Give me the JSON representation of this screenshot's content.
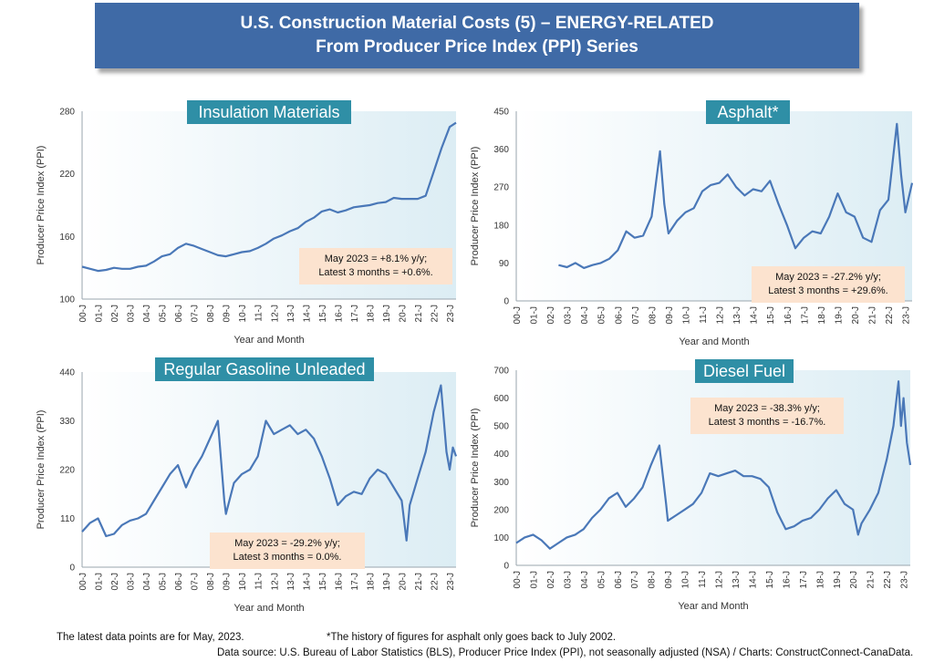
{
  "header": {
    "line1": "U.S. Construction Material Costs (5) – ENERGY-RELATED",
    "line2": "From Producer Price Index (PPI) Series"
  },
  "footer": {
    "latest": "The latest data points are for May, 2023.",
    "asphalt_note": "*The history of figures for asphalt only goes back to July 2002.",
    "source": "Data source: U.S. Bureau of Labor Statistics (BLS), Producer Price Index (PPI), not seasonally adjusted (NSA) / Charts: ConstructConnect-CanaData."
  },
  "colors": {
    "line": "#4a78b8",
    "title_box": "#2f8fa6",
    "annotation_box": "#fce3cf",
    "banner": "#3f6aa6"
  },
  "chart_data": [
    {
      "id": "insulation",
      "type": "line",
      "title": "Insulation Materials",
      "xlabel": "Year and Month",
      "ylabel": "Producer Price Index (PPI)",
      "ylim": [
        100,
        280
      ],
      "yticks": [
        100,
        160,
        220,
        280
      ],
      "xlim": [
        2000.0,
        2023.4
      ],
      "xticks": [
        "00-J",
        "01-J",
        "02-J",
        "03-J",
        "04-J",
        "05-J",
        "06-J",
        "07-J",
        "08-J",
        "09-J",
        "10-J",
        "11-J",
        "12-J",
        "13-J",
        "14-J",
        "15-J",
        "16-J",
        "17-J",
        "18-J",
        "19-J",
        "20-J",
        "21-J",
        "22-J",
        "23-J"
      ],
      "annotation": [
        "May 2023 = +8.1% y/y;",
        "Latest 3 months = +0.6%."
      ],
      "x": [
        2000.0,
        2000.5,
        2001.0,
        2001.5,
        2002.0,
        2002.5,
        2003.0,
        2003.5,
        2004.0,
        2004.5,
        2005.0,
        2005.5,
        2006.0,
        2006.5,
        2007.0,
        2007.5,
        2008.0,
        2008.5,
        2009.0,
        2009.5,
        2010.0,
        2010.5,
        2011.0,
        2011.5,
        2012.0,
        2012.5,
        2013.0,
        2013.5,
        2014.0,
        2014.5,
        2015.0,
        2015.5,
        2016.0,
        2016.5,
        2017.0,
        2017.5,
        2018.0,
        2018.5,
        2019.0,
        2019.5,
        2020.0,
        2020.5,
        2021.0,
        2021.5,
        2022.0,
        2022.5,
        2023.0,
        2023.4
      ],
      "values": [
        131,
        129,
        127,
        128,
        130,
        129,
        129,
        131,
        132,
        136,
        141,
        143,
        149,
        153,
        151,
        148,
        145,
        142,
        141,
        143,
        145,
        146,
        149,
        153,
        158,
        161,
        165,
        168,
        174,
        178,
        184,
        186,
        183,
        185,
        188,
        189,
        190,
        192,
        193,
        197,
        196,
        196,
        196,
        199,
        222,
        245,
        265,
        269
      ]
    },
    {
      "id": "asphalt",
      "type": "line",
      "title": "Asphalt*",
      "xlabel": "Year and Month",
      "ylabel": "Producer Price Index (PPI)",
      "ylim": [
        0,
        450
      ],
      "yticks": [
        0,
        90,
        180,
        270,
        360,
        450
      ],
      "xlim": [
        2000.0,
        2023.4
      ],
      "xticks": [
        "00-J",
        "01-J",
        "02-J",
        "03-J",
        "04-J",
        "05-J",
        "06-J",
        "07-J",
        "08-J",
        "09-J",
        "10-J",
        "11-J",
        "12-J",
        "13-J",
        "14-J",
        "15-J",
        "16-J",
        "17-J",
        "18-J",
        "19-J",
        "20-J",
        "21-J",
        "22-J",
        "23-J"
      ],
      "annotation": [
        "May 2023 = -27.2% y/y;",
        "Latest 3 months = +29.6%."
      ],
      "x": [
        2002.5,
        2003.0,
        2003.5,
        2004.0,
        2004.5,
        2005.0,
        2005.5,
        2006.0,
        2006.5,
        2007.0,
        2007.5,
        2008.0,
        2008.5,
        2008.75,
        2009.0,
        2009.5,
        2010.0,
        2010.5,
        2011.0,
        2011.5,
        2012.0,
        2012.5,
        2013.0,
        2013.5,
        2014.0,
        2014.5,
        2015.0,
        2015.5,
        2016.0,
        2016.5,
        2017.0,
        2017.5,
        2018.0,
        2018.5,
        2019.0,
        2019.5,
        2020.0,
        2020.5,
        2021.0,
        2021.5,
        2022.0,
        2022.5,
        2022.75,
        2023.0,
        2023.4
      ],
      "values": [
        85,
        80,
        90,
        78,
        85,
        90,
        100,
        120,
        165,
        150,
        155,
        200,
        355,
        230,
        160,
        190,
        210,
        220,
        260,
        275,
        280,
        300,
        270,
        250,
        265,
        260,
        285,
        230,
        180,
        125,
        150,
        165,
        160,
        200,
        255,
        210,
        200,
        150,
        140,
        215,
        240,
        420,
        300,
        210,
        280
      ]
    },
    {
      "id": "gasoline",
      "type": "line",
      "title": "Regular Gasoline Unleaded",
      "xlabel": "Year and Month",
      "ylabel": "Producer Price Index (PPI)",
      "ylim": [
        0,
        440
      ],
      "yticks": [
        0,
        110,
        220,
        330,
        440
      ],
      "xlim": [
        2000.0,
        2023.4
      ],
      "xticks": [
        "00-J",
        "01-J",
        "02-J",
        "03-J",
        "04-J",
        "05-J",
        "06-J",
        "07-J",
        "08-J",
        "09-J",
        "10-J",
        "11-J",
        "12-J",
        "13-J",
        "14-J",
        "15-J",
        "16-J",
        "17-J",
        "18-J",
        "19-J",
        "20-J",
        "21-J",
        "22-J",
        "23-J"
      ],
      "annotation": [
        "May 2023 = -29.2% y/y;",
        "Latest 3 months = 0.0%."
      ],
      "x": [
        2000.0,
        2000.5,
        2001.0,
        2001.5,
        2002.0,
        2002.5,
        2003.0,
        2003.5,
        2004.0,
        2004.5,
        2005.0,
        2005.5,
        2006.0,
        2006.5,
        2007.0,
        2007.5,
        2008.0,
        2008.5,
        2008.9,
        2009.0,
        2009.5,
        2010.0,
        2010.5,
        2011.0,
        2011.5,
        2012.0,
        2012.5,
        2013.0,
        2013.5,
        2014.0,
        2014.5,
        2015.0,
        2015.5,
        2016.0,
        2016.5,
        2017.0,
        2017.5,
        2018.0,
        2018.5,
        2019.0,
        2019.5,
        2020.0,
        2020.3,
        2020.5,
        2021.0,
        2021.5,
        2022.0,
        2022.45,
        2022.8,
        2023.0,
        2023.2,
        2023.4
      ],
      "values": [
        80,
        100,
        110,
        70,
        75,
        95,
        105,
        110,
        120,
        150,
        180,
        210,
        230,
        180,
        220,
        250,
        290,
        330,
        150,
        120,
        190,
        210,
        220,
        250,
        330,
        300,
        310,
        320,
        300,
        310,
        290,
        250,
        200,
        140,
        160,
        170,
        165,
        200,
        220,
        210,
        180,
        150,
        60,
        140,
        200,
        260,
        350,
        410,
        260,
        220,
        270,
        250
      ]
    },
    {
      "id": "diesel",
      "type": "line",
      "title": "Diesel Fuel",
      "xlabel": "Year and Month",
      "ylabel": "Producer Price Index (PPI)",
      "ylim": [
        0,
        700
      ],
      "yticks": [
        0,
        100,
        200,
        300,
        400,
        500,
        600,
        700
      ],
      "xlim": [
        2000.0,
        2023.4
      ],
      "xticks": [
        "00-J",
        "01-J",
        "02-J",
        "03-J",
        "04-J",
        "05-J",
        "06-J",
        "07-J",
        "08-J",
        "09-J",
        "10-J",
        "11-J",
        "12-J",
        "13-J",
        "14-J",
        "15-J",
        "16-J",
        "17-J",
        "18-J",
        "19-J",
        "20-J",
        "21-J",
        "22-J",
        "23-J"
      ],
      "annotation": [
        "May 2023 = -38.3% y/y;",
        "Latest 3 months = -16.7%."
      ],
      "x": [
        2000.0,
        2000.5,
        2001.0,
        2001.5,
        2002.0,
        2002.5,
        2003.0,
        2003.5,
        2004.0,
        2004.5,
        2005.0,
        2005.5,
        2006.0,
        2006.5,
        2007.0,
        2007.5,
        2008.0,
        2008.5,
        2008.9,
        2009.0,
        2009.5,
        2010.0,
        2010.5,
        2011.0,
        2011.5,
        2012.0,
        2012.5,
        2013.0,
        2013.5,
        2014.0,
        2014.5,
        2015.0,
        2015.5,
        2016.0,
        2016.5,
        2017.0,
        2017.5,
        2018.0,
        2018.5,
        2019.0,
        2019.5,
        2020.0,
        2020.3,
        2020.5,
        2021.0,
        2021.5,
        2022.0,
        2022.4,
        2022.7,
        2022.85,
        2023.0,
        2023.2,
        2023.4
      ],
      "values": [
        80,
        100,
        110,
        90,
        60,
        80,
        100,
        110,
        130,
        170,
        200,
        240,
        260,
        210,
        240,
        280,
        360,
        430,
        220,
        160,
        180,
        200,
        220,
        260,
        330,
        320,
        330,
        340,
        320,
        320,
        310,
        280,
        190,
        130,
        140,
        160,
        170,
        200,
        240,
        270,
        220,
        200,
        110,
        150,
        200,
        260,
        380,
        500,
        660,
        500,
        600,
        440,
        360
      ]
    }
  ]
}
